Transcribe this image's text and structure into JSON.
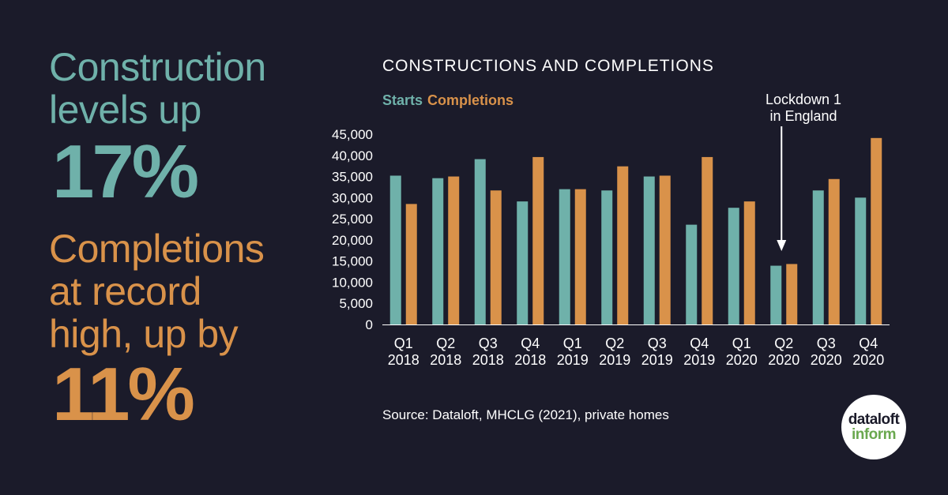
{
  "headline": {
    "line1": "Construction",
    "line2": "levels up",
    "value1": "17%",
    "line3": "Completions",
    "line4": "at record",
    "line5": "high, up by",
    "value2": "11%"
  },
  "annotation": {
    "line1": "Lockdown 1",
    "line2": "in England"
  },
  "source": "Source: Dataloft, MHCLG (2021), private homes",
  "logo": {
    "line1": "dataloft",
    "line2": "inform"
  },
  "colors": {
    "background": "#1b1b2a",
    "starts": "#6fb1aa",
    "completions": "#d9924a",
    "logo_green": "#6aa84f"
  },
  "chart_data": {
    "type": "bar",
    "title": "CONSTRUCTIONS AND COMPLETIONS",
    "categories": [
      [
        "Q1",
        "2018"
      ],
      [
        "Q2",
        "2018"
      ],
      [
        "Q3",
        "2018"
      ],
      [
        "Q4",
        "2018"
      ],
      [
        "Q1",
        "2019"
      ],
      [
        "Q2",
        "2019"
      ],
      [
        "Q3",
        "2019"
      ],
      [
        "Q4",
        "2019"
      ],
      [
        "Q1",
        "2020"
      ],
      [
        "Q2",
        "2020"
      ],
      [
        "Q3",
        "2020"
      ],
      [
        "Q4",
        "2020"
      ]
    ],
    "series": [
      {
        "name": "Starts",
        "values": [
          35200,
          34600,
          39100,
          29100,
          32000,
          31700,
          35000,
          23600,
          27600,
          13900,
          31700,
          30000
        ]
      },
      {
        "name": "Completions",
        "values": [
          28500,
          35000,
          31700,
          39600,
          32000,
          37400,
          35200,
          39600,
          29100,
          14300,
          34400,
          44100
        ]
      }
    ],
    "ylim": [
      0,
      45000
    ],
    "yticks": [
      0,
      5000,
      10000,
      15000,
      20000,
      25000,
      30000,
      35000,
      40000,
      45000
    ],
    "ytick_labels": [
      "0",
      "5,000",
      "10,000",
      "15,000",
      "20,000",
      "25,000",
      "30,000",
      "35,000",
      "40,000",
      "45,000"
    ],
    "grid": false,
    "legend": "top-left",
    "annotation_category_index": 9
  }
}
